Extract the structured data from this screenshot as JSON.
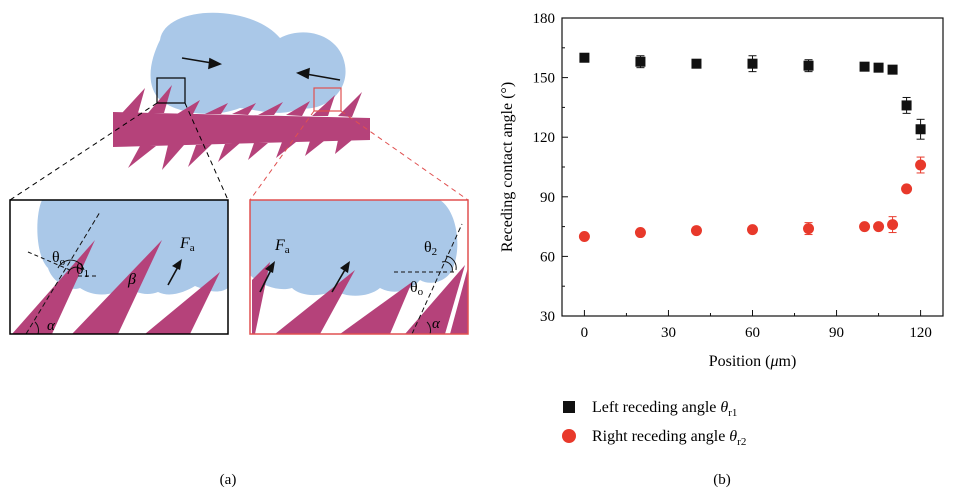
{
  "panel_a": {
    "caption": "(a)",
    "inset_left": {
      "theta_o": "θ",
      "theta_o_sub": "o",
      "theta_1": "θ",
      "theta_1_sub": "1",
      "beta": "β",
      "force": "F",
      "force_sub": "a",
      "alpha": "α"
    },
    "inset_right": {
      "theta_2": "θ",
      "theta_2_sub": "2",
      "theta_o": "θ",
      "theta_o_sub": "o",
      "force": "F",
      "force_sub": "a",
      "alpha": "α"
    },
    "colors": {
      "droplet": "#aac8e8",
      "fiber": "#b5427a",
      "left_box": "#000000",
      "right_box": "#e05050"
    }
  },
  "panel_b": {
    "caption": "(b)",
    "legend": [
      {
        "label": "Left receding angle ",
        "symbol": "θ",
        "sub": "r1",
        "marker": "square",
        "color": "#000000"
      },
      {
        "label": "Right receding angle ",
        "symbol": "θ",
        "sub": "r2",
        "marker": "circle",
        "color": "#e8392b"
      }
    ]
  },
  "chart_data": {
    "type": "scatter",
    "xlabel_pre": "Position (",
    "xlabel_mu": "μ",
    "xlabel_post": "m)",
    "ylabel": "Receding contact angle (°)",
    "xlim": [
      -8,
      128
    ],
    "ylim": [
      30,
      180
    ],
    "xticks": [
      0,
      30,
      60,
      90,
      120
    ],
    "yticks": [
      30,
      60,
      90,
      120,
      150,
      180
    ],
    "series": [
      {
        "marker": "square",
        "color": "#111111",
        "points": [
          {
            "x": 0,
            "y": 160,
            "err": 1.5
          },
          {
            "x": 20,
            "y": 158,
            "err": 3
          },
          {
            "x": 40,
            "y": 157,
            "err": 1.5
          },
          {
            "x": 60,
            "y": 157,
            "err": 4
          },
          {
            "x": 80,
            "y": 156,
            "err": 3
          },
          {
            "x": 100,
            "y": 155.5,
            "err": 1
          },
          {
            "x": 105,
            "y": 155,
            "err": 1
          },
          {
            "x": 110,
            "y": 154,
            "err": 1
          },
          {
            "x": 115,
            "y": 136,
            "err": 4
          },
          {
            "x": 120,
            "y": 124,
            "err": 5
          }
        ]
      },
      {
        "marker": "circle",
        "color": "#e8392b",
        "points": [
          {
            "x": 0,
            "y": 70,
            "err": 1
          },
          {
            "x": 20,
            "y": 72,
            "err": 1.5
          },
          {
            "x": 40,
            "y": 73,
            "err": 1
          },
          {
            "x": 60,
            "y": 73.5,
            "err": 1
          },
          {
            "x": 80,
            "y": 74,
            "err": 3
          },
          {
            "x": 100,
            "y": 75,
            "err": 1
          },
          {
            "x": 105,
            "y": 75,
            "err": 1
          },
          {
            "x": 110,
            "y": 76,
            "err": 4
          },
          {
            "x": 115,
            "y": 94,
            "err": 1
          },
          {
            "x": 120,
            "y": 106,
            "err": 4
          }
        ]
      }
    ]
  }
}
